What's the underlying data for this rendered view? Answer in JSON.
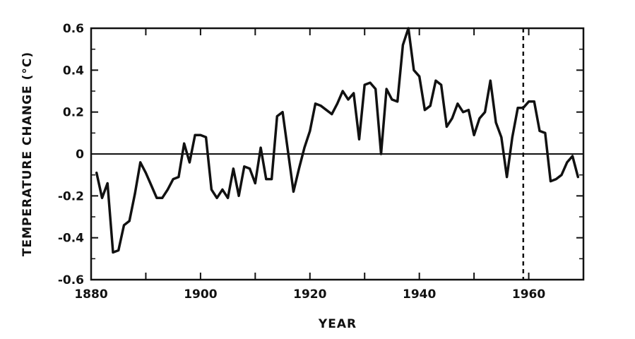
{
  "chart_data": {
    "type": "line",
    "xlabel": "YEAR",
    "ylabel": "TEMPERATURE CHANGE (°C)",
    "xlim": [
      1880,
      1970
    ],
    "ylim": [
      -0.6,
      0.6
    ],
    "x_ticks": [
      1880,
      1900,
      1920,
      1940,
      1960
    ],
    "x_tick_labels": [
      "1880",
      "1900",
      "1920",
      "1940",
      "1960"
    ],
    "y_ticks": [
      -0.6,
      -0.4,
      -0.2,
      0,
      0.2,
      0.4,
      0.6
    ],
    "y_tick_labels": [
      "-0.6",
      "-0.4",
      "-0.2",
      "0",
      "0.2",
      "0.4",
      "0.6"
    ],
    "grid": false,
    "reference_lines": [
      {
        "axis": "y",
        "value": 0,
        "style": "solid"
      },
      {
        "axis": "x",
        "value": 1959,
        "style": "dashed"
      }
    ],
    "series": [
      {
        "x": [
          1881,
          1882,
          1883,
          1884,
          1885,
          1886,
          1887,
          1888,
          1889,
          1890,
          1891,
          1892,
          1893,
          1894,
          1895,
          1896,
          1897,
          1898,
          1899,
          1900,
          1901,
          1902,
          1903,
          1904,
          1905,
          1906,
          1907,
          1908,
          1909,
          1910,
          1911,
          1912,
          1913,
          1914,
          1915,
          1916,
          1917,
          1918,
          1919,
          1920,
          1921,
          1922,
          1923,
          1924,
          1925,
          1926,
          1927,
          1928,
          1929,
          1930,
          1931,
          1932,
          1933,
          1934,
          1935,
          1936,
          1937,
          1938,
          1939,
          1940,
          1941,
          1942,
          1943,
          1944,
          1945,
          1946,
          1947,
          1948,
          1949,
          1950,
          1951,
          1952,
          1953,
          1954,
          1955,
          1956,
          1957,
          1958,
          1959,
          1960,
          1961,
          1962,
          1963,
          1964,
          1965,
          1966,
          1967,
          1968,
          1969
        ],
        "y": [
          -0.09,
          -0.21,
          -0.14,
          -0.47,
          -0.46,
          -0.34,
          -0.32,
          -0.19,
          -0.04,
          -0.09,
          -0.15,
          -0.21,
          -0.21,
          -0.17,
          -0.12,
          -0.11,
          0.05,
          -0.04,
          0.09,
          0.09,
          0.08,
          -0.17,
          -0.21,
          -0.17,
          -0.21,
          -0.07,
          -0.2,
          -0.06,
          -0.07,
          -0.14,
          0.03,
          -0.12,
          -0.12,
          0.18,
          0.2,
          0.01,
          -0.18,
          -0.07,
          0.03,
          0.11,
          0.24,
          0.23,
          0.21,
          0.19,
          0.24,
          0.3,
          0.26,
          0.29,
          0.07,
          0.33,
          0.34,
          0.31,
          0.0,
          0.31,
          0.26,
          0.25,
          0.52,
          0.6,
          0.4,
          0.37,
          0.21,
          0.23,
          0.35,
          0.33,
          0.13,
          0.17,
          0.24,
          0.2,
          0.21,
          0.09,
          0.17,
          0.2,
          0.35,
          0.15,
          0.08,
          -0.11,
          0.08,
          0.22,
          0.22,
          0.25,
          0.25,
          0.11,
          0.1,
          -0.13,
          -0.12,
          -0.1,
          -0.04,
          -0.01,
          -0.11
        ]
      }
    ]
  }
}
